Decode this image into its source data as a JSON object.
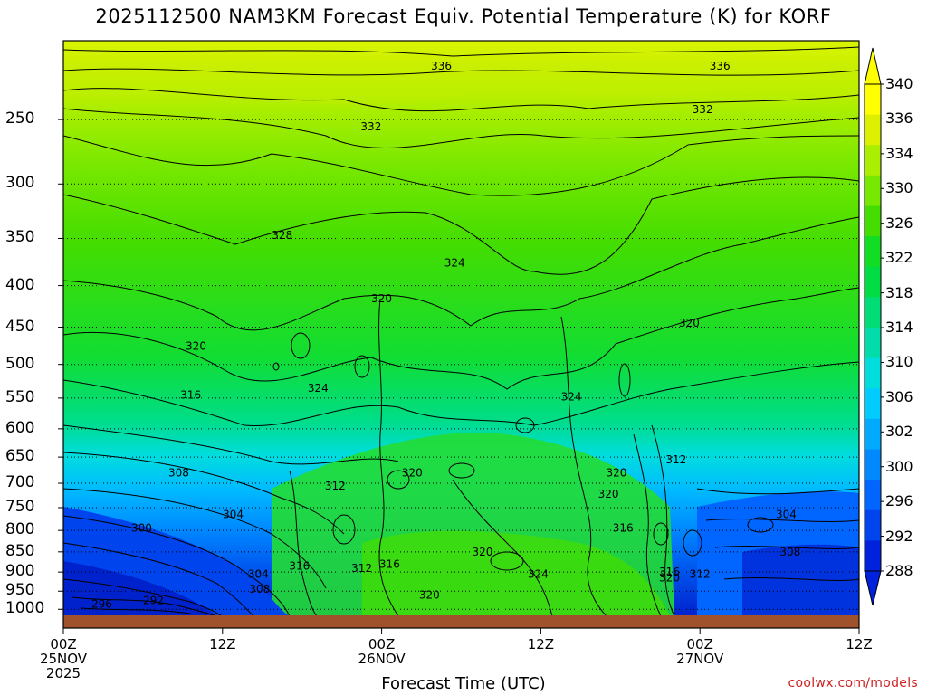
{
  "title": "2025112500 NAM3KM Forecast Equiv. Potential Temperature (K) for KORF",
  "xlabel": "Forecast Time (UTC)",
  "credit": "coolwx.com/models",
  "colors": {
    "ground": "#a0522d",
    "band_colors": [
      "#0022dd",
      "#0044ee",
      "#0066ff",
      "#0088ff",
      "#00aaff",
      "#00ccff",
      "#00dddd",
      "#00ddaa",
      "#00dd77",
      "#00dd44",
      "#11dd22",
      "#44dd00",
      "#77e800",
      "#aaee00",
      "#ddf000",
      "#ffff00"
    ]
  },
  "chart_data": {
    "type": "heatmap",
    "title": "2025112500 NAM3KM Forecast Equiv. Potential Temperature (K) for KORF",
    "xlabel": "Forecast Time (UTC)",
    "ylabel": "",
    "x_ticks": [
      {
        "label": "00Z",
        "sub": "25NOV",
        "sub2": "2025",
        "hours": 0
      },
      {
        "label": "12Z",
        "sub": "",
        "sub2": "",
        "hours": 12
      },
      {
        "label": "00Z",
        "sub": "26NOV",
        "sub2": "",
        "hours": 24
      },
      {
        "label": "12Z",
        "sub": "",
        "sub2": "",
        "hours": 36
      },
      {
        "label": "00Z",
        "sub": "27NOV",
        "sub2": "",
        "hours": 48
      },
      {
        "label": "12Z",
        "sub": "",
        "sub2": "",
        "hours": 60
      }
    ],
    "y_ticks": [
      250,
      300,
      350,
      400,
      450,
      500,
      550,
      600,
      650,
      700,
      750,
      800,
      850,
      900,
      950,
      1000
    ],
    "yscale": "log-pressure",
    "ylim": [
      200,
      1020
    ],
    "xlim": [
      0,
      60
    ],
    "colorbar_ticks": [
      340,
      336,
      334,
      330,
      326,
      322,
      318,
      314,
      310,
      306,
      302,
      300,
      296,
      292,
      288
    ],
    "contour_labels": [
      {
        "text": "336",
        "hours": 28.5,
        "p": 215
      },
      {
        "text": "336",
        "hours": 49.5,
        "p": 215
      },
      {
        "text": "332",
        "hours": 23.2,
        "p": 255
      },
      {
        "text": "332",
        "hours": 48.2,
        "p": 243
      },
      {
        "text": "328",
        "hours": 16.5,
        "p": 347
      },
      {
        "text": "324",
        "hours": 29.5,
        "p": 375
      },
      {
        "text": "320",
        "hours": 24.0,
        "p": 415
      },
      {
        "text": "320",
        "hours": 10.0,
        "p": 475
      },
      {
        "text": "320",
        "hours": 47.2,
        "p": 445
      },
      {
        "text": "316",
        "hours": 9.6,
        "p": 545
      },
      {
        "text": "324",
        "hours": 19.2,
        "p": 535
      },
      {
        "text": "324",
        "hours": 38.3,
        "p": 548
      },
      {
        "text": "308",
        "hours": 8.7,
        "p": 680
      },
      {
        "text": "312",
        "hours": 20.5,
        "p": 705
      },
      {
        "text": "320",
        "hours": 26.3,
        "p": 680
      },
      {
        "text": "320",
        "hours": 41.7,
        "p": 680
      },
      {
        "text": "312",
        "hours": 46.2,
        "p": 655
      },
      {
        "text": "320",
        "hours": 41.1,
        "p": 722
      },
      {
        "text": "304",
        "hours": 12.8,
        "p": 765
      },
      {
        "text": "300",
        "hours": 5.9,
        "p": 795
      },
      {
        "text": "316",
        "hours": 42.2,
        "p": 795
      },
      {
        "text": "304",
        "hours": 54.5,
        "p": 765
      },
      {
        "text": "320",
        "hours": 31.6,
        "p": 850
      },
      {
        "text": "308",
        "hours": 54.8,
        "p": 850
      },
      {
        "text": "316",
        "hours": 17.8,
        "p": 885
      },
      {
        "text": "312",
        "hours": 22.5,
        "p": 890
      },
      {
        "text": "316",
        "hours": 24.6,
        "p": 880
      },
      {
        "text": "324",
        "hours": 35.8,
        "p": 905
      },
      {
        "text": "304",
        "hours": 14.7,
        "p": 905
      },
      {
        "text": "316",
        "hours": 45.7,
        "p": 900
      },
      {
        "text": "320",
        "hours": 45.7,
        "p": 915
      },
      {
        "text": "312",
        "hours": 48.0,
        "p": 905
      },
      {
        "text": "308",
        "hours": 14.8,
        "p": 945
      },
      {
        "text": "320",
        "hours": 27.6,
        "p": 960
      },
      {
        "text": "296",
        "hours": 2.9,
        "p": 985
      },
      {
        "text": "292",
        "hours": 6.8,
        "p": 975
      }
    ]
  }
}
